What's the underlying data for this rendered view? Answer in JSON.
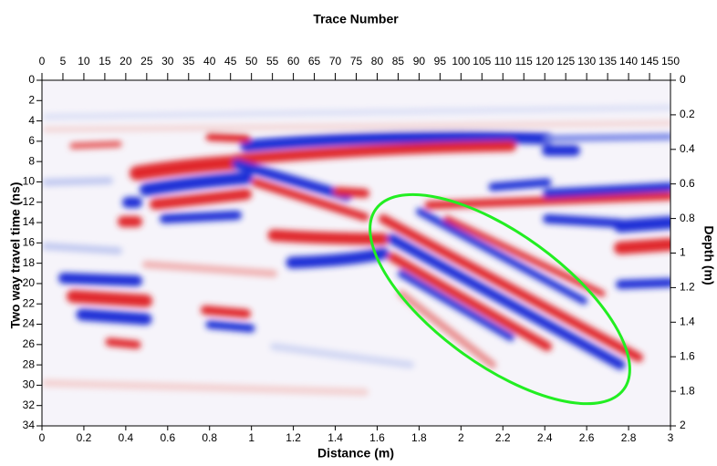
{
  "chart_data": {
    "type": "radargram",
    "x2_label": "Trace Number",
    "x_label": "Distance (m)",
    "y_label": "Two way travel time (ns)",
    "y2_label": "Depth (m)",
    "xlim": [
      0,
      3
    ],
    "xticks": [
      0,
      0.2,
      0.4,
      0.6,
      0.8,
      1,
      1.2,
      1.4,
      1.6,
      1.8,
      2,
      2.2,
      2.4,
      2.6,
      2.8,
      3
    ],
    "x2lim": [
      0,
      150
    ],
    "x2ticks": [
      0,
      5,
      10,
      15,
      20,
      25,
      30,
      35,
      40,
      45,
      50,
      55,
      60,
      65,
      70,
      75,
      80,
      85,
      90,
      95,
      100,
      105,
      110,
      115,
      120,
      125,
      130,
      135,
      140,
      145,
      150
    ],
    "ylim": [
      0,
      34
    ],
    "yticks": [
      0,
      2,
      4,
      6,
      8,
      10,
      12,
      14,
      16,
      18,
      20,
      22,
      24,
      26,
      28,
      30,
      32,
      34
    ],
    "y2lim": [
      0,
      2
    ],
    "y2ticks": [
      0,
      0.2,
      0.4,
      0.6,
      0.8,
      1,
      1.2,
      1.4,
      1.6,
      1.8,
      2
    ]
  }
}
